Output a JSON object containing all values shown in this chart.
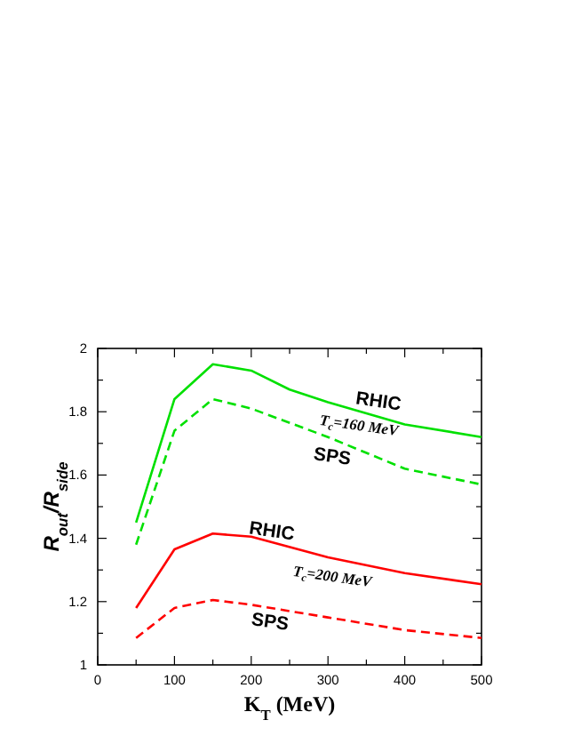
{
  "chart_data": {
    "type": "line",
    "xlabel": "K$_{T}$ (MeV)",
    "ylabel": "R$_{out}$/R$_{side}$",
    "xlim": [
      0,
      500
    ],
    "ylim": [
      1,
      2
    ],
    "xticks": [
      0,
      {
        "value": 50,
        "label": null
      },
      100,
      {
        "value": 150,
        "label": null
      },
      200,
      {
        "value": 250,
        "label": null
      },
      300,
      {
        "value": 350,
        "label": null
      },
      400,
      {
        "value": 450,
        "label": null
      },
      500
    ],
    "yticks": [
      1,
      {
        "value": 1.1,
        "label": null
      },
      1.2,
      {
        "value": 1.3,
        "label": null
      },
      1.4,
      {
        "value": 1.5,
        "label": null
      },
      1.6,
      {
        "value": 1.7,
        "label": null
      },
      1.8,
      {
        "value": 1.9,
        "label": null
      },
      2
    ],
    "grid": false,
    "series": [
      {
        "x": [
          50,
          100,
          150,
          200,
          250,
          300,
          400,
          500
        ],
        "values": [
          1.45,
          1.84,
          1.95,
          1.93,
          1.87,
          1.83,
          1.76,
          1.72
        ],
        "color": "#00e000",
        "line_style": "solid"
      },
      {
        "x": [
          50,
          100,
          150,
          200,
          300,
          400,
          500
        ],
        "values": [
          1.38,
          1.74,
          1.84,
          1.81,
          1.72,
          1.62,
          1.57
        ],
        "color": "#00e000",
        "line_style": "dashed"
      },
      {
        "x": [
          50,
          100,
          150,
          200,
          300,
          400,
          500
        ],
        "values": [
          1.18,
          1.365,
          1.415,
          1.405,
          1.34,
          1.29,
          1.255
        ],
        "color": "#ff0000",
        "line_style": "solid"
      },
      {
        "x": [
          50,
          100,
          150,
          200,
          300,
          400,
          500
        ],
        "values": [
          1.085,
          1.18,
          1.205,
          1.19,
          1.15,
          1.11,
          1.085
        ],
        "color": "#ff0000",
        "line_style": "dashed"
      }
    ],
    "annotations": [
      "RHIC",
      "T$_{c}$=160 MeV",
      "SPS",
      "RHIC",
      "T$_{c}$=200 MeV",
      "SPS"
    ]
  }
}
